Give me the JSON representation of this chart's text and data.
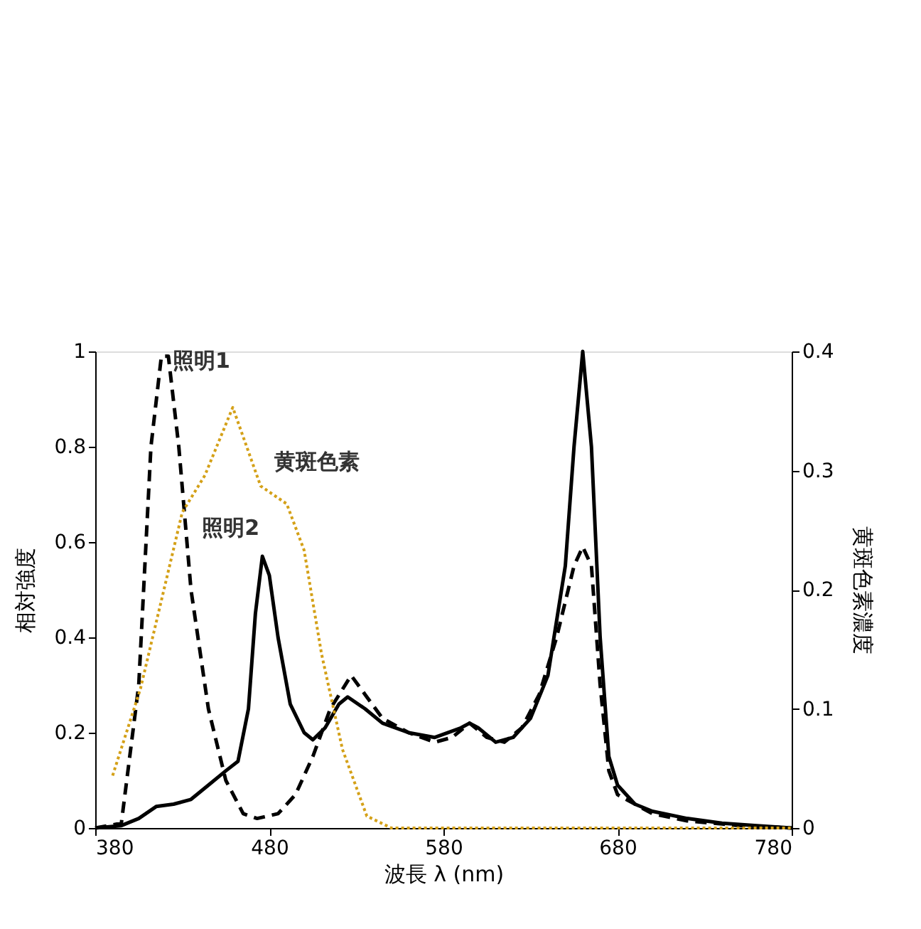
{
  "chart_data": {
    "type": "line",
    "xlabel": "波長 λ (nm)",
    "ylabel": "相対強度",
    "y2label": "黄斑色素濃度",
    "xlim": [
      380,
      780
    ],
    "xticks": [
      380,
      480,
      580,
      680,
      780
    ],
    "ylim": [
      0,
      1
    ],
    "yticks": [
      0,
      0.2,
      0.4,
      0.6,
      0.8,
      1
    ],
    "y2lim": [
      0,
      0.4
    ],
    "y2ticks": [
      0,
      0.1,
      0.2,
      0.3,
      0.4
    ],
    "grid": false,
    "marker": "none",
    "series": [
      {
        "name": "照明1",
        "color": "#000000",
        "line_style": "dashed",
        "x": [
          380,
          395,
          405,
          412,
          418,
          422,
          428,
          435,
          445,
          455,
          465,
          473,
          485,
          495,
          505,
          515,
          527,
          535,
          545,
          560,
          575,
          585,
          595,
          605,
          615,
          625,
          635,
          645,
          655,
          660,
          665,
          670,
          675,
          680,
          700,
          720,
          750,
          780
        ],
        "values": [
          0,
          0.01,
          0.3,
          0.8,
          0.99,
          0.99,
          0.8,
          0.5,
          0.25,
          0.1,
          0.03,
          0.02,
          0.03,
          0.07,
          0.15,
          0.25,
          0.32,
          0.28,
          0.23,
          0.2,
          0.18,
          0.19,
          0.22,
          0.19,
          0.18,
          0.21,
          0.28,
          0.4,
          0.55,
          0.59,
          0.55,
          0.3,
          0.12,
          0.07,
          0.03,
          0.015,
          0.005,
          0
        ]
      },
      {
        "name": "照明2",
        "color": "#000000",
        "line_style": "solid",
        "x": [
          380,
          395,
          405,
          415,
          425,
          435,
          445,
          455,
          462,
          468,
          472,
          476,
          480,
          485,
          492,
          500,
          505,
          512,
          520,
          525,
          535,
          545,
          560,
          575,
          590,
          595,
          600,
          610,
          620,
          630,
          640,
          650,
          655,
          660,
          665,
          670,
          675,
          680,
          690,
          700,
          720,
          740,
          760,
          780
        ],
        "values": [
          0,
          0.005,
          0.02,
          0.045,
          0.05,
          0.06,
          0.09,
          0.12,
          0.14,
          0.25,
          0.45,
          0.57,
          0.53,
          0.4,
          0.26,
          0.2,
          0.185,
          0.21,
          0.26,
          0.275,
          0.25,
          0.22,
          0.2,
          0.19,
          0.21,
          0.22,
          0.21,
          0.18,
          0.19,
          0.23,
          0.32,
          0.55,
          0.8,
          1.0,
          0.8,
          0.4,
          0.15,
          0.09,
          0.05,
          0.035,
          0.02,
          0.01,
          0.005,
          0
        ]
      },
      {
        "name": "黄斑色素",
        "color": "#d4a017",
        "line_style": "dotted",
        "axis": "y2",
        "x": [
          390,
          406,
          430,
          443,
          459,
          475,
          490,
          500,
          510,
          522,
          536,
          550,
          600,
          650,
          700,
          780
        ],
        "values": [
          0.044,
          0.117,
          0.265,
          0.296,
          0.353,
          0.287,
          0.272,
          0.233,
          0.146,
          0.066,
          0.01,
          0,
          0,
          0,
          0,
          0
        ]
      }
    ]
  }
}
